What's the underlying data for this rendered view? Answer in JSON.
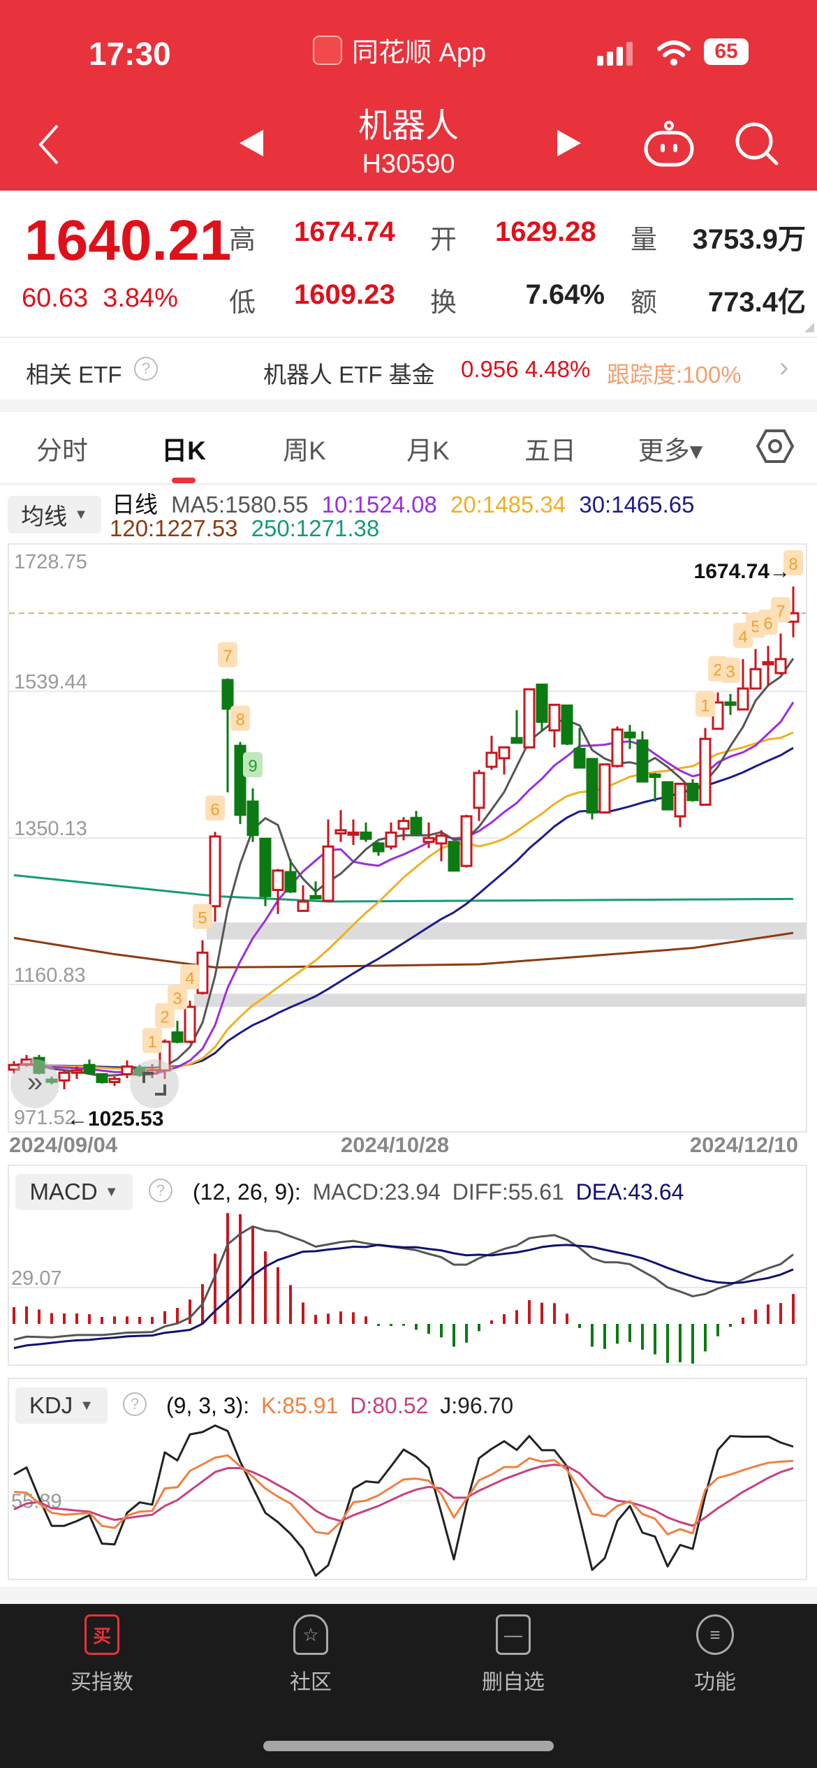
{
  "status_bar": {
    "time": "17:30",
    "app_name": "同花顺 App",
    "battery": "65"
  },
  "header": {
    "title": "机器人",
    "code": "H30590",
    "icons": [
      "back-chevron-icon",
      "prev-triangle-icon",
      "next-triangle-icon",
      "robot-assistant-icon",
      "search-icon"
    ]
  },
  "quote": {
    "price": "1640.21",
    "change": "60.63",
    "change_pct": "3.84%",
    "high_label": "高",
    "high": "1674.74",
    "open_label": "开",
    "open": "1629.28",
    "volume_label": "量",
    "volume": "3753.9万",
    "low_label": "低",
    "low": "1609.23",
    "turnover_label": "换",
    "turnover": "7.64%",
    "amount_label": "额",
    "amount": "773.4亿"
  },
  "etf": {
    "label": "相关 ETF",
    "help": "?",
    "name": "机器人 ETF 基金",
    "price_change": "0.956 4.48%",
    "tracking": "跟踪度:100%",
    "chevron": "›"
  },
  "tabs": [
    {
      "label": "分时",
      "active": false
    },
    {
      "label": "日K",
      "active": true
    },
    {
      "label": "周K",
      "active": false
    },
    {
      "label": "月K",
      "active": false
    },
    {
      "label": "五日",
      "active": false
    },
    {
      "label": "更多▾",
      "active": false
    }
  ],
  "ma_legend": {
    "button": "均线",
    "period": "日线",
    "ma5": "MA5:1580.55",
    "ma10": "10:1524.08",
    "ma20": "20:1485.34",
    "ma30": "30:1465.65",
    "ma120": "120:1227.53",
    "ma250": "250:1271.38"
  },
  "colors": {
    "up": "#c8161d",
    "down": "#0b7a12",
    "ma5": "#555555",
    "ma10": "#9a2ee0",
    "ma20": "#efb020",
    "ma30": "#1b1b8a",
    "ma120": "#8b3a10",
    "ma250": "#169a78",
    "k": "#f08040",
    "d": "#c84080",
    "j": "#222222",
    "diff": "#555555",
    "dea": "#10106e",
    "accent": "#e8323c",
    "tracking": "#f0a070"
  },
  "chart_data": [
    {
      "type": "candlestick",
      "y_ticks": [
        "1728.75",
        "1539.44",
        "1350.13",
        "1160.83",
        "971.52"
      ],
      "ylim": [
        971.52,
        1728.75
      ],
      "x_labels": [
        "2024/09/04",
        "2024/10/28",
        "2024/12/10"
      ],
      "high_marker": "1674.74→",
      "low_marker": "←1025.53",
      "last_close_line": 1640.21,
      "ohlc": [
        [
          1051,
          1062,
          1046,
          1057
        ],
        [
          1058,
          1070,
          1055,
          1064
        ],
        [
          1066,
          1070,
          1045,
          1047
        ],
        [
          1038,
          1042,
          1032,
          1036
        ],
        [
          1037,
          1050,
          1025.53,
          1047
        ],
        [
          1047,
          1055,
          1039,
          1050
        ],
        [
          1057,
          1064,
          1045,
          1047
        ],
        [
          1045,
          1046,
          1033,
          1035
        ],
        [
          1035,
          1042,
          1030,
          1039
        ],
        [
          1045,
          1063,
          1040,
          1055
        ],
        [
          1053,
          1057,
          1042,
          1045
        ],
        [
          1046,
          1058,
          1040,
          1050
        ],
        [
          1050,
          1090,
          1039,
          1087
        ],
        [
          1099,
          1114,
          1085,
          1087
        ],
        [
          1087,
          1140,
          1085,
          1132
        ],
        [
          1150,
          1218,
          1148,
          1202
        ],
        [
          1262,
          1358,
          1242,
          1352
        ],
        [
          1554,
          1556,
          1409,
          1517
        ],
        [
          1469,
          1474,
          1368,
          1380
        ],
        [
          1397,
          1414,
          1345,
          1354
        ],
        [
          1349,
          1349,
          1262,
          1275
        ],
        [
          1283,
          1310,
          1252,
          1308
        ],
        [
          1306,
          1323,
          1279,
          1281
        ],
        [
          1256,
          1289,
          1256,
          1268
        ],
        [
          1275,
          1294,
          1271,
          1272
        ],
        [
          1269,
          1374,
          1268,
          1339
        ],
        [
          1356,
          1386,
          1345,
          1360
        ],
        [
          1356,
          1374,
          1341,
          1357
        ],
        [
          1357,
          1370,
          1345,
          1349
        ],
        [
          1343,
          1345,
          1327,
          1333
        ],
        [
          1339,
          1370,
          1335,
          1357
        ],
        [
          1362,
          1377,
          1347,
          1372
        ],
        [
          1376,
          1385,
          1354,
          1356
        ],
        [
          1345,
          1370,
          1337,
          1350
        ],
        [
          1343,
          1360,
          1320,
          1353
        ],
        [
          1345,
          1345,
          1307,
          1308
        ],
        [
          1314,
          1380,
          1312,
          1378
        ],
        [
          1389,
          1438,
          1372,
          1434
        ],
        [
          1442,
          1482,
          1438,
          1460
        ],
        [
          1453,
          1467,
          1432,
          1467
        ],
        [
          1479,
          1515,
          1472,
          1473
        ],
        [
          1467,
          1542,
          1467,
          1542
        ],
        [
          1548,
          1548,
          1488,
          1500
        ],
        [
          1489,
          1522,
          1467,
          1522
        ],
        [
          1521,
          1522,
          1470,
          1472
        ],
        [
          1465,
          1492,
          1441,
          1441
        ],
        [
          1452,
          1452,
          1374,
          1383
        ],
        [
          1383,
          1445,
          1382,
          1445
        ],
        [
          1443,
          1494,
          1441,
          1490
        ],
        [
          1486,
          1496,
          1465,
          1480
        ],
        [
          1476,
          1488,
          1423,
          1423
        ],
        [
          1432,
          1434,
          1397,
          1429
        ],
        [
          1422,
          1422,
          1386,
          1387
        ],
        [
          1378,
          1420,
          1364,
          1420
        ],
        [
          1420,
          1426,
          1397,
          1399
        ],
        [
          1393,
          1492,
          1393,
          1478
        ],
        [
          1491,
          1538,
          1491,
          1525
        ],
        [
          1525,
          1536,
          1509,
          1522
        ],
        [
          1516,
          1581,
          1515,
          1543
        ],
        [
          1543,
          1594,
          1543,
          1568
        ],
        [
          1576,
          1598,
          1546,
          1577
        ],
        [
          1563,
          1614,
          1561,
          1581
        ],
        [
          1629.28,
          1674.74,
          1609.23,
          1640.21
        ]
      ],
      "ma120_points": [
        [
          0,
          1221
        ],
        [
          8,
          1200
        ],
        [
          16,
          1183
        ],
        [
          24,
          1184
        ],
        [
          37,
          1187
        ],
        [
          46,
          1198
        ],
        [
          54,
          1208
        ],
        [
          62,
          1227.53
        ]
      ],
      "ma250_points": [
        [
          0,
          1302
        ],
        [
          16,
          1275
        ],
        [
          25,
          1268
        ],
        [
          62,
          1271.38
        ]
      ],
      "gaps": [
        {
          "from_index": 16,
          "high": 1241,
          "low": 1219
        },
        {
          "from_index": 15,
          "high": 1149,
          "low": 1132
        }
      ],
      "sequence_labels": [
        {
          "index": 11,
          "text": "1"
        },
        {
          "index": 12,
          "text": "2"
        },
        {
          "index": 13,
          "text": "3"
        },
        {
          "index": 14,
          "text": "4"
        },
        {
          "index": 15,
          "text": "5"
        },
        {
          "index": 16,
          "text": "6"
        },
        {
          "index": 17,
          "text": "7"
        },
        {
          "index": 18,
          "text": "8"
        },
        {
          "index": 19,
          "text": "9",
          "green": true
        },
        {
          "index": 55,
          "text": "1"
        },
        {
          "index": 56,
          "text": "2"
        },
        {
          "index": 57,
          "text": "3"
        },
        {
          "index": 58,
          "text": "4"
        },
        {
          "index": 59,
          "text": "5"
        },
        {
          "index": 60,
          "text": "6"
        },
        {
          "index": 61,
          "text": "7"
        },
        {
          "index": 62,
          "text": "8"
        }
      ]
    },
    {
      "type": "bar",
      "name": "MACD",
      "button": "MACD",
      "params": "(12, 26, 9):",
      "macd_label": "MACD:23.94",
      "diff_label": "DIFF:55.61",
      "dea_label": "DEA:43.64",
      "y_tick": "29.07",
      "histogram": [
        13.4,
        14,
        11.5,
        8.7,
        8.4,
        8.4,
        7.8,
        5.6,
        6,
        6,
        5.6,
        5.6,
        10.2,
        12.8,
        19.5,
        31.8,
        56.2,
        88.7,
        87.8,
        78.3,
        58,
        45.4,
        31.1,
        17.1,
        7.3,
        8.2,
        10,
        9.3,
        6,
        -0.5,
        -0.6,
        -1.5,
        -4.7,
        -8,
        -10.8,
        -18.2,
        -15,
        -5.8,
        2.8,
        7.8,
        11,
        19,
        17,
        16.6,
        8.2,
        -3.3,
        -18.2,
        -20,
        -15.8,
        -14.5,
        -20.6,
        -24.4,
        -31.2,
        -30.7,
        -31.8,
        -22,
        -9.9,
        -2.4,
        5,
        11.5,
        15.6,
        16.7,
        23.94
      ],
      "diff": [
        -12.6,
        -10.2,
        -10.5,
        -10.8,
        -9.8,
        -8.9,
        -8.9,
        -8.9,
        -8,
        -7,
        -6.8,
        -6.5,
        -2,
        0.4,
        5,
        16,
        38.5,
        63.6,
        72,
        78,
        74.8,
        73.8,
        70,
        66.4,
        61.8,
        63.6,
        65.5,
        66.4,
        64.5,
        63,
        61.8,
        60.5,
        59,
        56,
        53.4,
        47.4,
        47.4,
        52.5,
        56.2,
        60,
        62.7,
        68.6,
        70,
        71,
        67.3,
        60.8,
        52.5,
        49.3,
        49.3,
        47.8,
        42.2,
        36.6,
        29.2,
        25.9,
        22.1,
        24,
        28.3,
        31.4,
        35.7,
        40.7,
        44.5,
        47.8,
        55.61
      ]
    },
    {
      "type": "line",
      "name": "KDJ",
      "button": "KDJ",
      "params": "(9, 3, 3):",
      "k_label": "K:85.91",
      "d_label": "D:80.52",
      "j_label": "J:96.70",
      "y_tick": "55.89",
      "k": [
        62.6,
        62,
        53.8,
        46.8,
        45.4,
        46,
        46.8,
        37,
        35.4,
        44.7,
        47.7,
        48.2,
        65.2,
        66.1,
        78.4,
        83.3,
        88.4,
        90.1,
        81.9,
        74,
        65.2,
        59,
        53.8,
        43.3,
        32.4,
        31,
        39.8,
        54.7,
        56,
        60,
        66,
        72,
        72.6,
        71,
        60.8,
        43.3,
        57.3,
        71.3,
        75.7,
        81.3,
        81.3,
        88,
        85.4,
        86.6,
        79.2,
        64.3,
        45.9,
        44.2,
        52,
        55.6,
        45.9,
        42.4,
        30.6,
        34.5,
        31.3,
        64.3,
        73.1,
        75.7,
        78.9,
        81.9,
        84.5,
        85.4,
        85.91
      ],
      "d": [
        49.4,
        53.8,
        55,
        50.3,
        49.5,
        48.5,
        47.7,
        44.2,
        41.5,
        42.8,
        44.2,
        45.4,
        52,
        56.4,
        63.5,
        70.5,
        77.5,
        80.5,
        80.5,
        77.5,
        73.1,
        67.8,
        62.6,
        56.4,
        48.5,
        43.3,
        40.6,
        45,
        48.5,
        52,
        56.4,
        60.8,
        64.3,
        66.4,
        65.2,
        58.2,
        58.2,
        63.5,
        67.8,
        72.2,
        75.7,
        79.2,
        81.9,
        83.1,
        82,
        76.6,
        67,
        59,
        55.9,
        54.7,
        52,
        48.5,
        43.3,
        39.8,
        37.1,
        43.3,
        50.3,
        56.4,
        62.6,
        67.8,
        73.1,
        77.5,
        80.52
      ],
      "j": [
        75.7,
        81,
        58,
        37,
        37,
        40.6,
        45,
        23.6,
        23,
        46.8,
        54.7,
        53,
        92.4,
        86.3,
        105.9,
        107.7,
        112.6,
        108.5,
        85.4,
        66,
        46.8,
        39.8,
        31,
        19.6,
        -0.6,
        7.3,
        35,
        65,
        70.5,
        69.6,
        81.9,
        94.5,
        88.9,
        80.5,
        46.8,
        11.7,
        53.8,
        88,
        95,
        100.8,
        94.2,
        104.7,
        94,
        94,
        81.9,
        43.3,
        3.8,
        12.6,
        40.6,
        52,
        31.9,
        28.9,
        6.4,
        22.6,
        19.6,
        59.9,
        94.2,
        104.7,
        104.2,
        104.2,
        104.3,
        99.8,
        96.7
      ]
    }
  ],
  "bottom_nav": [
    {
      "label": "买指数",
      "icon_text": "买",
      "active": true
    },
    {
      "label": "社区",
      "icon_text": "☆",
      "active": false
    },
    {
      "label": "删自选",
      "icon_text": "—",
      "active": false
    },
    {
      "label": "功能",
      "icon_text": "≡",
      "active": false
    }
  ]
}
